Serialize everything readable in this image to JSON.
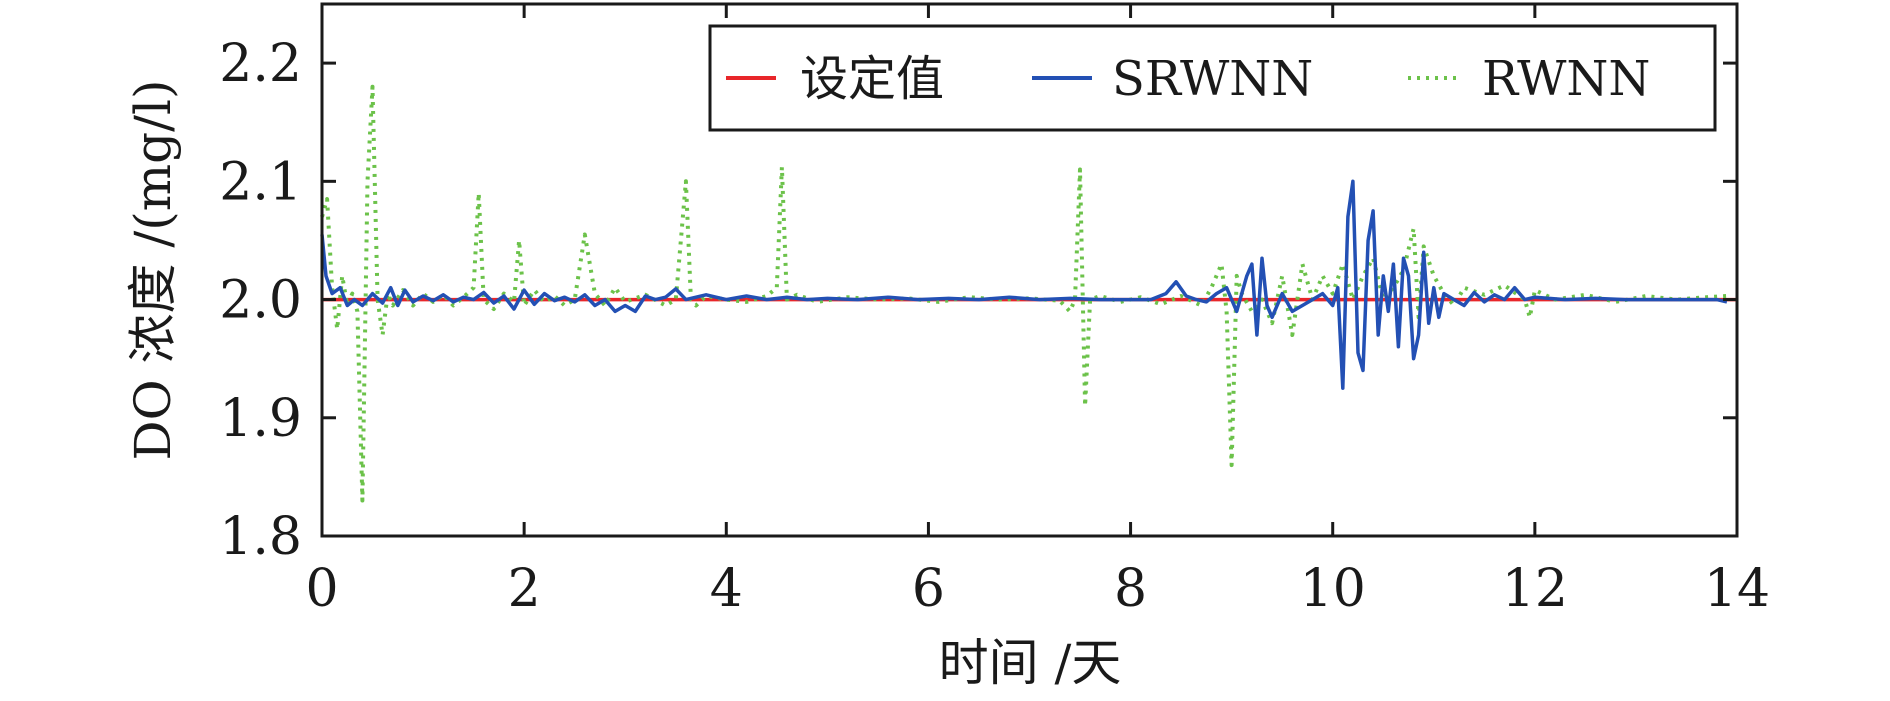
{
  "chart_data": {
    "type": "line",
    "title": "",
    "xlabel": "时间 /天",
    "ylabel": "DO 浓度 /(mg/l)",
    "xlim": [
      0,
      14
    ],
    "ylim": [
      1.8,
      2.25
    ],
    "x_ticks": [
      0,
      2,
      4,
      6,
      8,
      10,
      12,
      14
    ],
    "x_tick_labels": [
      "0",
      "2",
      "4",
      "6",
      "8",
      "10",
      "12",
      "14"
    ],
    "y_ticks": [
      1.8,
      1.9,
      2.0,
      2.1,
      2.2
    ],
    "y_tick_labels": [
      "1.8",
      "1.9",
      "2.0",
      "2.1",
      "2.2"
    ],
    "grid": false,
    "legend_position": "top-right",
    "series": [
      {
        "name": "设定值",
        "color": "#e8262a",
        "style": "solid",
        "x": [
          0,
          14
        ],
        "y": [
          2.0,
          2.0
        ]
      },
      {
        "name": "SRWNN",
        "color": "#2350b4",
        "style": "solid",
        "x": [
          0,
          0.04,
          0.1,
          0.18,
          0.25,
          0.32,
          0.4,
          0.5,
          0.6,
          0.68,
          0.75,
          0.82,
          0.9,
          1.0,
          1.1,
          1.2,
          1.3,
          1.4,
          1.5,
          1.6,
          1.7,
          1.8,
          1.9,
          2.0,
          2.1,
          2.2,
          2.3,
          2.4,
          2.5,
          2.6,
          2.7,
          2.8,
          2.9,
          3.0,
          3.1,
          3.2,
          3.3,
          3.4,
          3.5,
          3.6,
          3.8,
          4.0,
          4.2,
          4.4,
          4.6,
          4.8,
          5.0,
          5.3,
          5.6,
          5.9,
          6.2,
          6.5,
          6.8,
          7.1,
          7.4,
          7.7,
          8.0,
          8.2,
          8.35,
          8.45,
          8.55,
          8.65,
          8.75,
          8.85,
          8.95,
          9.05,
          9.15,
          9.2,
          9.25,
          9.3,
          9.35,
          9.4,
          9.5,
          9.6,
          9.7,
          9.8,
          9.9,
          10.0,
          10.05,
          10.1,
          10.15,
          10.2,
          10.25,
          10.3,
          10.35,
          10.4,
          10.45,
          10.5,
          10.55,
          10.6,
          10.65,
          10.7,
          10.75,
          10.8,
          10.85,
          10.9,
          10.95,
          11.0,
          11.05,
          11.1,
          11.2,
          11.3,
          11.4,
          11.5,
          11.6,
          11.7,
          11.8,
          11.9,
          12.0,
          12.3,
          12.6,
          12.9,
          13.2,
          13.5,
          13.8,
          13.9
        ],
        "y": [
          2.055,
          2.02,
          2.005,
          2.01,
          1.995,
          2.0,
          1.995,
          2.005,
          1.997,
          2.01,
          1.995,
          2.008,
          1.998,
          2.003,
          1.999,
          2.004,
          1.998,
          2.002,
          2.0,
          2.006,
          1.997,
          2.003,
          1.992,
          2.008,
          1.996,
          2.005,
          1.999,
          2.002,
          1.998,
          2.004,
          1.995,
          2.0,
          1.99,
          1.995,
          1.99,
          2.003,
          2.0,
          2.002,
          2.009,
          2.0,
          2.004,
          2.0,
          2.003,
          2.0,
          2.002,
          2.0,
          2.001,
          2.0,
          2.002,
          2.0,
          2.001,
          2.0,
          2.002,
          2.0,
          2.001,
          2.0,
          2.0,
          2.0,
          2.005,
          2.015,
          2.003,
          2.0,
          1.998,
          2.005,
          2.01,
          1.99,
          2.02,
          2.03,
          1.97,
          2.035,
          1.995,
          1.985,
          2.005,
          1.99,
          1.995,
          2.0,
          2.005,
          1.995,
          2.01,
          1.925,
          2.07,
          2.1,
          1.955,
          1.94,
          2.05,
          2.075,
          1.97,
          2.02,
          1.99,
          2.03,
          1.96,
          2.035,
          2.02,
          1.95,
          1.97,
          2.04,
          1.98,
          2.01,
          1.985,
          2.005,
          2.0,
          1.995,
          2.006,
          1.998,
          2.004,
          2.0,
          2.01,
          2.0,
          2.002,
          2.0,
          2.001,
          2.0,
          2.0,
          2.0,
          2.0,
          1.998
        ]
      },
      {
        "name": "RWNN",
        "color": "#6cc24a",
        "style": "dotted",
        "x": [
          0,
          0.05,
          0.1,
          0.15,
          0.2,
          0.25,
          0.3,
          0.35,
          0.4,
          0.45,
          0.5,
          0.55,
          0.6,
          0.65,
          0.7,
          0.8,
          0.9,
          1.0,
          1.1,
          1.2,
          1.3,
          1.4,
          1.5,
          1.55,
          1.6,
          1.7,
          1.8,
          1.9,
          1.95,
          2.0,
          2.1,
          2.2,
          2.3,
          2.4,
          2.5,
          2.6,
          2.7,
          2.8,
          2.9,
          3.0,
          3.2,
          3.4,
          3.5,
          3.6,
          3.65,
          3.7,
          3.8,
          4.0,
          4.2,
          4.4,
          4.5,
          4.55,
          4.6,
          4.7,
          4.9,
          5.2,
          5.5,
          5.8,
          6.1,
          6.4,
          6.7,
          7.0,
          7.3,
          7.4,
          7.45,
          7.5,
          7.55,
          7.6,
          7.7,
          7.9,
          8.1,
          8.3,
          8.5,
          8.7,
          8.8,
          8.9,
          8.95,
          9.0,
          9.05,
          9.1,
          9.2,
          9.3,
          9.4,
          9.5,
          9.6,
          9.7,
          9.8,
          9.9,
          10.0,
          10.1,
          10.2,
          10.3,
          10.4,
          10.5,
          10.6,
          10.7,
          10.8,
          10.85,
          10.9,
          11.0,
          11.1,
          11.2,
          11.3,
          11.5,
          11.7,
          11.9,
          11.95,
          12.0,
          12.2,
          12.5,
          12.8,
          13.1,
          13.4,
          13.7,
          13.9
        ],
        "y": [
          2.07,
          2.085,
          2.01,
          1.975,
          2.02,
          1.995,
          2.005,
          1.99,
          1.83,
          2.1,
          2.18,
          2.0,
          1.97,
          2.005,
          1.995,
          2.008,
          1.995,
          2.005,
          1.998,
          2.004,
          1.995,
          2.002,
          2.01,
          2.09,
          2.0,
          1.992,
          2.005,
          1.998,
          2.05,
          1.995,
          2.008,
          1.998,
          2.003,
          1.995,
          2.0,
          2.055,
          2.005,
          1.995,
          2.01,
          1.998,
          2.004,
          1.995,
          2.0,
          2.1,
          2.0,
          1.995,
          2.003,
          2.0,
          1.998,
          2.003,
          2.01,
          2.112,
          2.0,
          2.004,
          1.998,
          2.002,
          2.0,
          2.001,
          1.998,
          2.002,
          2.0,
          2.001,
          1.999,
          1.99,
          2.0,
          2.11,
          1.91,
          2.0,
          2.003,
          1.998,
          2.002,
          1.996,
          2.003,
          1.995,
          2.01,
          2.03,
          1.99,
          1.86,
          2.02,
          2.005,
          1.99,
          2.0,
          1.98,
          2.02,
          1.97,
          2.03,
          2.0,
          2.02,
          2.005,
          2.03,
          2.0,
          2.02,
          2.035,
          2.0,
          2.01,
          2.025,
          2.06,
          1.985,
          2.045,
          2.02,
          2.005,
          1.995,
          2.01,
          2.004,
          2.012,
          2.0,
          1.985,
          2.008,
          2.0,
          2.004,
          1.998,
          2.003,
          2.0,
          2.002,
          2.003
        ]
      }
    ]
  }
}
